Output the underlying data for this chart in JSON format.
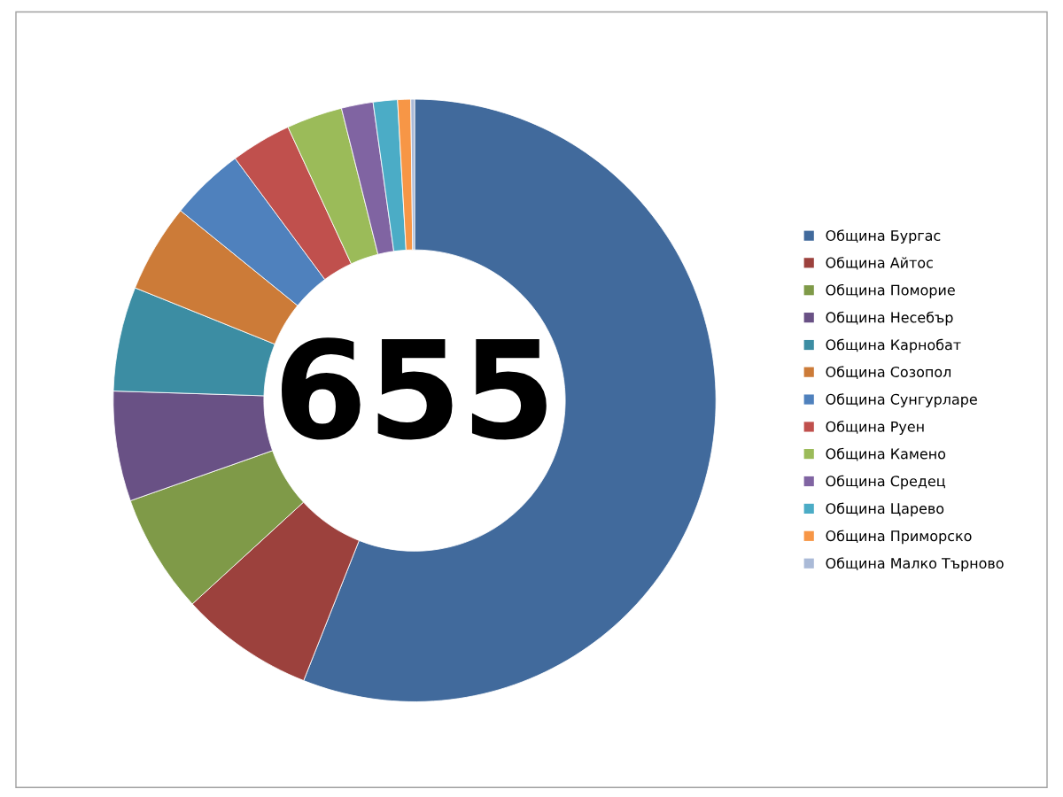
{
  "chart_data": {
    "type": "donut",
    "categories": [
      "Община Бургас",
      "Община Айтос",
      "Община Поморие",
      "Община Несебър",
      "Община Карнобат",
      "Община Созопол",
      "Община Сунгурларе",
      "Община Руен",
      "Община Камено",
      "Община Средец",
      "Община Царево",
      "Община Приморско",
      "Община Малко Търново"
    ],
    "values": [
      56.0,
      7.2,
      6.4,
      5.9,
      5.6,
      4.75,
      4.0,
      3.25,
      3.0,
      1.7,
      1.3,
      0.7,
      0.2
    ],
    "colors": [
      "#416a9c",
      "#9c413d",
      "#7f9a48",
      "#695185",
      "#3c8da3",
      "#cc7b38",
      "#4f81bd",
      "#c0504d",
      "#9bbb59",
      "#8064a2",
      "#4bacc6",
      "#f79646",
      "#aabad7"
    ],
    "annotations": [
      "655"
    ],
    "legend": "right"
  }
}
